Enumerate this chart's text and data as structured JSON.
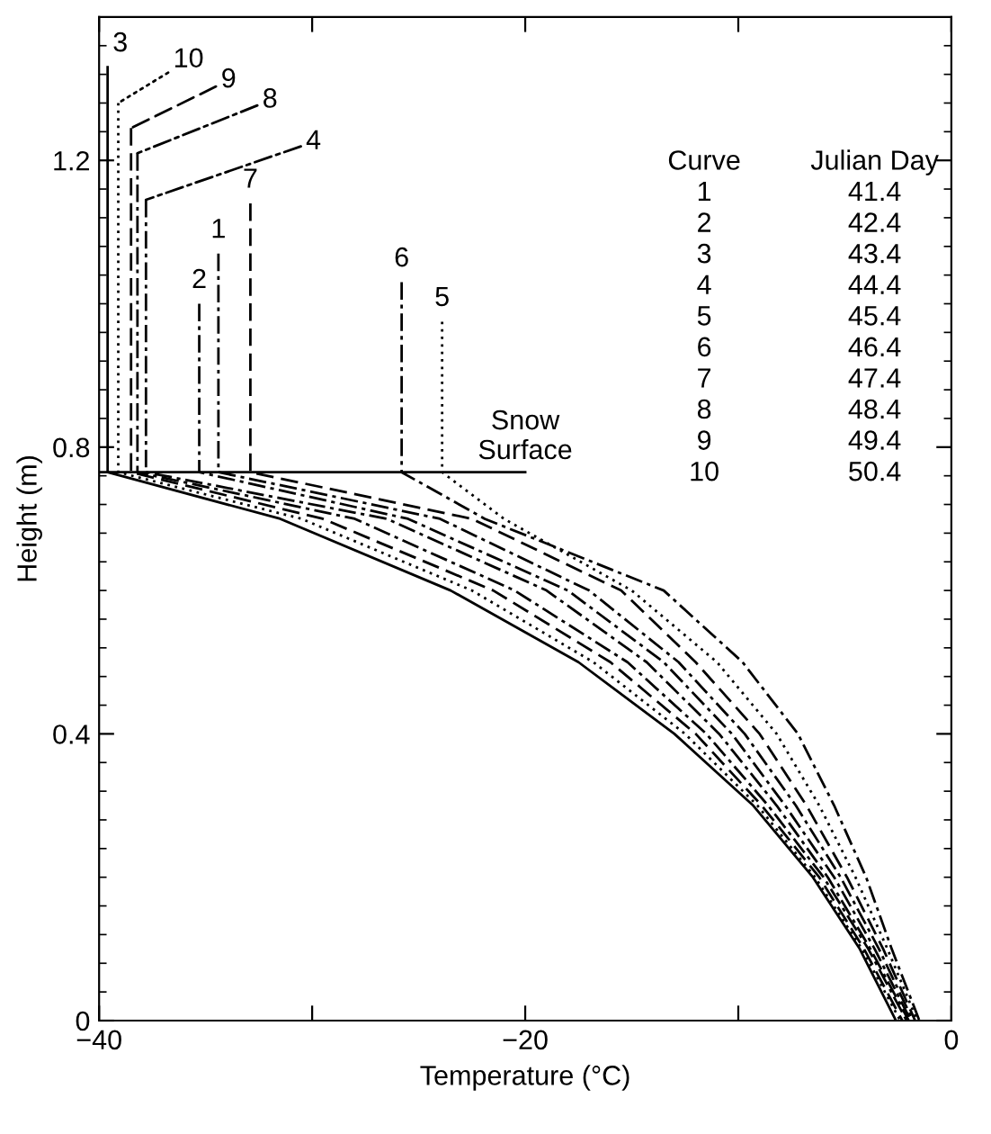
{
  "chart_data": {
    "type": "line",
    "xlabel": "Temperature (°C)",
    "ylabel": "Height (m)",
    "xlim": [
      -40,
      0
    ],
    "ylim": [
      0,
      1.4
    ],
    "xticks": [
      -40,
      {
        "value": -30,
        "label": null
      },
      -20,
      {
        "value": -10,
        "label": null
      },
      0
    ],
    "yticks": [
      0,
      0.4,
      0.8,
      1.2
    ],
    "grid": false,
    "legend": "top left",
    "marker": "none",
    "series": [
      {
        "name": "1",
        "color": "#000000",
        "line_style": "dashdot",
        "x": [
          -34.4,
          -34.4,
          -24.0,
          -17.0,
          -12.8,
          -9.7,
          -7.3,
          -5.2,
          -3.4,
          -1.8
        ],
        "values": [
          1.07,
          0.765,
          0.7,
          0.6,
          0.5,
          0.4,
          0.3,
          0.2,
          0.1,
          0
        ]
      },
      {
        "name": "2",
        "color": "#000000",
        "line_style": "dashdot",
        "x": [
          -35.3,
          -35.3,
          -25.5,
          -18.0,
          -13.5,
          -10.3,
          -7.8,
          -5.5,
          -3.6,
          -1.9
        ],
        "values": [
          1.0,
          0.765,
          0.7,
          0.6,
          0.5,
          0.4,
          0.3,
          0.2,
          0.1,
          0
        ]
      },
      {
        "name": "3",
        "color": "#000000",
        "line_style": "solid",
        "x": [
          -39.6,
          -39.6,
          -31.5,
          -23.5,
          -17.5,
          -13.0,
          -9.3,
          -6.5,
          -4.3,
          -2.6
        ],
        "values": [
          1.33,
          0.765,
          0.7,
          0.6,
          0.5,
          0.4,
          0.3,
          0.2,
          0.1,
          0
        ]
      },
      {
        "name": "4",
        "color": "#000000",
        "line_style": "dashdot",
        "x": [
          -37.8,
          -37.8,
          -26.5,
          -19.0,
          -14.3,
          -10.9,
          -8.2,
          -5.8,
          -3.8,
          -2.0
        ],
        "values": [
          1.145,
          0.765,
          0.7,
          0.6,
          0.5,
          0.4,
          0.3,
          0.2,
          0.1,
          0
        ]
      },
      {
        "name": "5",
        "color": "#000000",
        "line_style": "dotted",
        "x": [
          -23.9,
          -23.9,
          -21.0,
          -15.0,
          -11.0,
          -8.2,
          -6.2,
          -4.5,
          -3.0,
          -1.6
        ],
        "values": [
          0.975,
          0.765,
          0.7,
          0.6,
          0.5,
          0.4,
          0.3,
          0.2,
          0.1,
          0
        ]
      },
      {
        "name": "6",
        "color": "#000000",
        "line_style": "dashdot",
        "x": [
          -25.8,
          -25.8,
          -21.9,
          -13.5,
          -9.8,
          -7.2,
          -5.5,
          -4.0,
          -2.8,
          -1.5
        ],
        "values": [
          1.03,
          0.765,
          0.7,
          0.6,
          0.5,
          0.4,
          0.3,
          0.2,
          0.1,
          0
        ]
      },
      {
        "name": "7",
        "color": "#000000",
        "line_style": "dashed",
        "x": [
          -32.9,
          -32.9,
          -22.5,
          -15.5,
          -12.0,
          -9.0,
          -6.8,
          -4.9,
          -3.2,
          -1.7
        ],
        "values": [
          1.14,
          0.765,
          0.7,
          0.6,
          0.5,
          0.4,
          0.3,
          0.2,
          0.1,
          0
        ]
      },
      {
        "name": "8",
        "color": "#000000",
        "line_style": "dashdot",
        "x": [
          -38.2,
          -38.2,
          -28.0,
          -20.5,
          -15.2,
          -11.5,
          -8.6,
          -6.0,
          -3.9,
          -2.1
        ],
        "values": [
          1.21,
          0.765,
          0.7,
          0.6,
          0.5,
          0.4,
          0.3,
          0.2,
          0.1,
          0
        ]
      },
      {
        "name": "9",
        "color": "#000000",
        "line_style": "dashed",
        "x": [
          -38.5,
          -38.5,
          -29.5,
          -21.5,
          -16.0,
          -12.0,
          -8.9,
          -6.2,
          -4.1,
          -2.3
        ],
        "values": [
          1.245,
          0.765,
          0.7,
          0.6,
          0.5,
          0.4,
          0.3,
          0.2,
          0.1,
          0
        ]
      },
      {
        "name": "10",
        "color": "#000000",
        "line_style": "dotted",
        "x": [
          -39.1,
          -39.1,
          -30.5,
          -22.5,
          -16.8,
          -12.5,
          -9.1,
          -6.4,
          -4.2,
          -2.4
        ],
        "values": [
          1.28,
          0.765,
          0.7,
          0.6,
          0.5,
          0.4,
          0.3,
          0.2,
          0.1,
          0
        ]
      },
      {
        "color": "#000000",
        "line_style": "solid",
        "x": [
          -40,
          -20
        ],
        "values": [
          0.765,
          0.765
        ]
      }
    ],
    "annotations": [
      {
        "text": "Snow\nSurface",
        "x": -20,
        "y": 0.765
      },
      "Curve",
      "Julian Day",
      "1",
      "41.4",
      "2",
      "42.4",
      "3",
      "43.4",
      "4",
      "44.4",
      "5",
      "45.4",
      "6",
      "46.4",
      "7",
      "47.4",
      "8",
      "48.4",
      "9",
      "49.4",
      "10",
      "50.4"
    ]
  }
}
